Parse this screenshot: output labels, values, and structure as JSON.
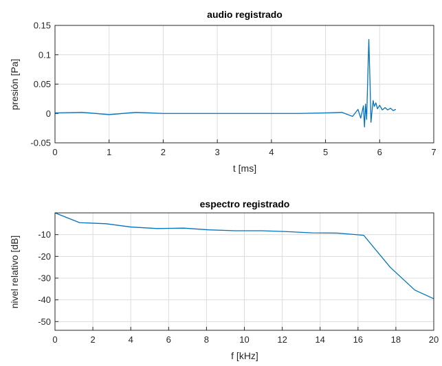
{
  "chart_data": [
    {
      "type": "line",
      "title": "audio registrado",
      "xlabel": "t [ms]",
      "ylabel": "presión [Pa]",
      "xlim": [
        0,
        7
      ],
      "ylim": [
        -0.05,
        0.15
      ],
      "xticks": [
        "0",
        "1",
        "2",
        "3",
        "4",
        "5",
        "6",
        "7"
      ],
      "yticks": [
        "-0.05",
        "0",
        "0.05",
        "0.1",
        "0.15"
      ],
      "grid": true,
      "color": "#0072bd",
      "x": [
        0,
        0.5,
        1.0,
        1.5,
        2.0,
        2.5,
        3.0,
        3.5,
        4.0,
        4.5,
        5.0,
        5.3,
        5.5,
        5.6,
        5.65,
        5.7,
        5.72,
        5.74,
        5.76,
        5.78,
        5.8,
        5.82,
        5.84,
        5.86,
        5.88,
        5.9,
        5.93,
        5.96,
        6.0,
        6.05,
        6.1,
        6.15,
        6.2,
        6.25,
        6.3
      ],
      "y": [
        0.001,
        0.002,
        -0.002,
        0.002,
        0.0,
        0.0,
        0.0,
        0.0,
        0.0,
        0.0,
        0.001,
        0.002,
        -0.005,
        0.007,
        -0.008,
        0.013,
        -0.023,
        0.016,
        -0.01,
        0.06,
        0.126,
        0.06,
        -0.015,
        0.005,
        0.022,
        0.012,
        0.018,
        0.008,
        0.014,
        0.006,
        0.01,
        0.006,
        0.009,
        0.005,
        0.007
      ]
    },
    {
      "type": "line",
      "title": "espectro registrado",
      "xlabel": "f [kHz]",
      "ylabel": "nivel relativo [dB]",
      "xlim": [
        0,
        20
      ],
      "ylim": [
        -54,
        0
      ],
      "xticks": [
        "0",
        "2",
        "4",
        "6",
        "8",
        "10",
        "12",
        "14",
        "16",
        "18",
        "20"
      ],
      "yticks": [
        "-50",
        "-40",
        "-30",
        "-20",
        "-10"
      ],
      "grid": true,
      "color": "#0072bd",
      "x": [
        0,
        1.3,
        2.7,
        4.0,
        5.4,
        6.8,
        8.1,
        9.5,
        10.9,
        12.2,
        13.6,
        14.9,
        16.3,
        17.7,
        19.0,
        20.0
      ],
      "y": [
        0,
        -4.5,
        -5.0,
        -6.5,
        -7.2,
        -7.0,
        -7.8,
        -8.2,
        -8.2,
        -8.6,
        -9.2,
        -9.3,
        -10.3,
        -25.0,
        -35.5,
        -39.5
      ]
    }
  ]
}
